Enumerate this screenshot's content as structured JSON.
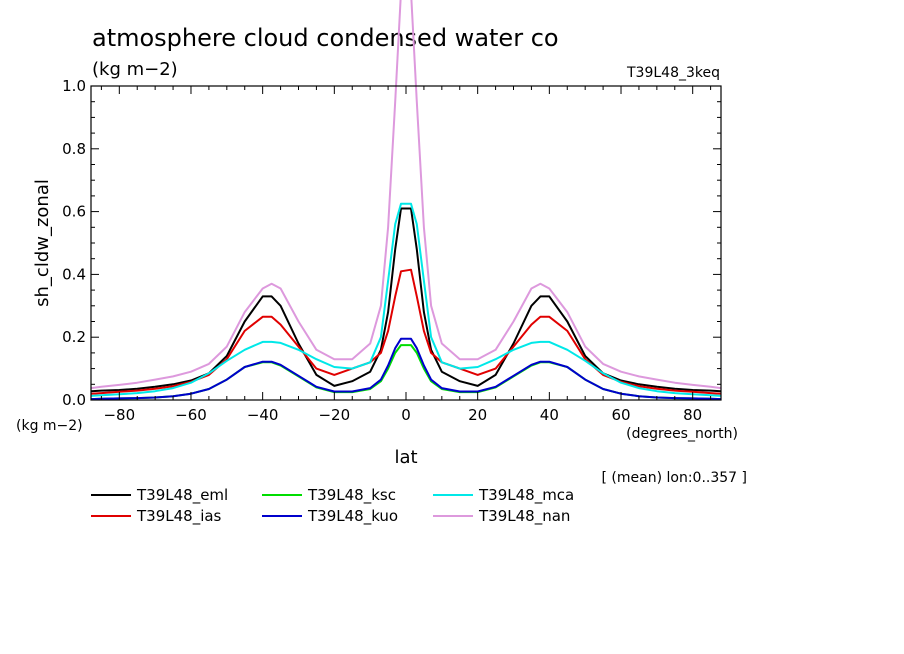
{
  "chart_data": {
    "type": "line",
    "title": "atmosphere cloud condensed water co",
    "units": "(kg m−2)",
    "experiment": "T39L48_3keq",
    "xlabel": "lat",
    "ylabel": "sh_cldw_zonal",
    "x_units": "(degrees_north)",
    "y_units": "(kg m−2)",
    "footnote": "[ (mean) lon:0..357 ]",
    "xlim": [
      -87.9,
      87.9
    ],
    "ylim": [
      0,
      1.0
    ],
    "x_ticks": [
      -80,
      -60,
      -40,
      -20,
      0,
      20,
      40,
      60,
      80
    ],
    "x_tick_labels": [
      "−80",
      "−60",
      "−40",
      "−20",
      "0",
      "20",
      "40",
      "60",
      "80"
    ],
    "y_ticks": [
      0,
      0.2,
      0.4,
      0.6,
      0.8,
      1.0
    ],
    "y_tick_labels": [
      "0.0",
      "0.2",
      "0.4",
      "0.6",
      "0.8",
      "1.0"
    ],
    "grid": false,
    "legend_position": "bottom",
    "x": [
      -87.9,
      -85,
      -80,
      -75,
      -70,
      -65,
      -60,
      -55,
      -50,
      -45,
      -40,
      -37.5,
      -35,
      -30,
      -25,
      -20,
      -15,
      -10,
      -7,
      -5,
      -3,
      -1.4,
      1.4,
      3,
      5,
      7,
      10,
      15,
      20,
      25,
      30,
      35,
      37.5,
      40,
      45,
      50,
      55,
      60,
      65,
      70,
      75,
      80,
      85,
      87.9
    ],
    "series": [
      {
        "name": "T39L48_eml",
        "color": "#000000",
        "values": [
          0.028,
          0.03,
          0.032,
          0.036,
          0.042,
          0.05,
          0.062,
          0.085,
          0.14,
          0.25,
          0.33,
          0.33,
          0.3,
          0.18,
          0.08,
          0.045,
          0.06,
          0.09,
          0.16,
          0.28,
          0.48,
          0.61,
          0.61,
          0.48,
          0.28,
          0.16,
          0.09,
          0.06,
          0.045,
          0.08,
          0.18,
          0.3,
          0.33,
          0.33,
          0.25,
          0.14,
          0.085,
          0.062,
          0.05,
          0.042,
          0.036,
          0.032,
          0.03,
          0.028
        ]
      },
      {
        "name": "T39L48_ias",
        "color": "#e00000",
        "values": [
          0.02,
          0.022,
          0.026,
          0.03,
          0.036,
          0.044,
          0.058,
          0.08,
          0.13,
          0.22,
          0.265,
          0.265,
          0.24,
          0.17,
          0.1,
          0.08,
          0.1,
          0.12,
          0.15,
          0.22,
          0.33,
          0.41,
          0.415,
          0.33,
          0.22,
          0.15,
          0.12,
          0.1,
          0.08,
          0.1,
          0.17,
          0.24,
          0.265,
          0.265,
          0.22,
          0.13,
          0.08,
          0.058,
          0.044,
          0.036,
          0.03,
          0.026,
          0.022,
          0.02
        ]
      },
      {
        "name": "T39L48_ksc",
        "color": "#00dd00",
        "values": [
          0.003,
          0.004,
          0.005,
          0.006,
          0.008,
          0.012,
          0.02,
          0.035,
          0.065,
          0.105,
          0.12,
          0.12,
          0.11,
          0.075,
          0.04,
          0.025,
          0.025,
          0.035,
          0.06,
          0.1,
          0.15,
          0.175,
          0.175,
          0.15,
          0.1,
          0.06,
          0.035,
          0.025,
          0.025,
          0.04,
          0.075,
          0.11,
          0.12,
          0.12,
          0.105,
          0.065,
          0.035,
          0.02,
          0.012,
          0.008,
          0.006,
          0.005,
          0.004,
          0.003
        ]
      },
      {
        "name": "T39L48_kuo",
        "color": "#0000cc",
        "values": [
          0.003,
          0.004,
          0.005,
          0.006,
          0.008,
          0.012,
          0.02,
          0.035,
          0.065,
          0.105,
          0.122,
          0.122,
          0.112,
          0.077,
          0.042,
          0.027,
          0.027,
          0.038,
          0.065,
          0.11,
          0.165,
          0.195,
          0.195,
          0.165,
          0.11,
          0.065,
          0.038,
          0.027,
          0.027,
          0.042,
          0.077,
          0.112,
          0.122,
          0.122,
          0.105,
          0.065,
          0.035,
          0.02,
          0.012,
          0.008,
          0.006,
          0.005,
          0.004,
          0.003
        ]
      },
      {
        "name": "T39L48_mca",
        "color": "#00e8e8",
        "values": [
          0.013,
          0.015,
          0.018,
          0.022,
          0.028,
          0.038,
          0.055,
          0.085,
          0.125,
          0.16,
          0.185,
          0.185,
          0.182,
          0.16,
          0.13,
          0.105,
          0.1,
          0.12,
          0.2,
          0.38,
          0.56,
          0.625,
          0.625,
          0.56,
          0.38,
          0.2,
          0.12,
          0.1,
          0.105,
          0.13,
          0.16,
          0.182,
          0.185,
          0.185,
          0.16,
          0.125,
          0.085,
          0.055,
          0.038,
          0.028,
          0.022,
          0.018,
          0.015,
          0.013
        ]
      },
      {
        "name": "T39L48_nan",
        "color": "#dd99dd",
        "values": [
          0.038,
          0.042,
          0.048,
          0.055,
          0.065,
          0.075,
          0.09,
          0.115,
          0.17,
          0.28,
          0.355,
          0.37,
          0.355,
          0.25,
          0.16,
          0.13,
          0.13,
          0.18,
          0.3,
          0.55,
          0.95,
          1.3,
          1.3,
          0.95,
          0.55,
          0.3,
          0.18,
          0.13,
          0.13,
          0.16,
          0.25,
          0.355,
          0.37,
          0.355,
          0.28,
          0.17,
          0.115,
          0.09,
          0.075,
          0.065,
          0.055,
          0.048,
          0.042,
          0.038
        ]
      }
    ]
  }
}
